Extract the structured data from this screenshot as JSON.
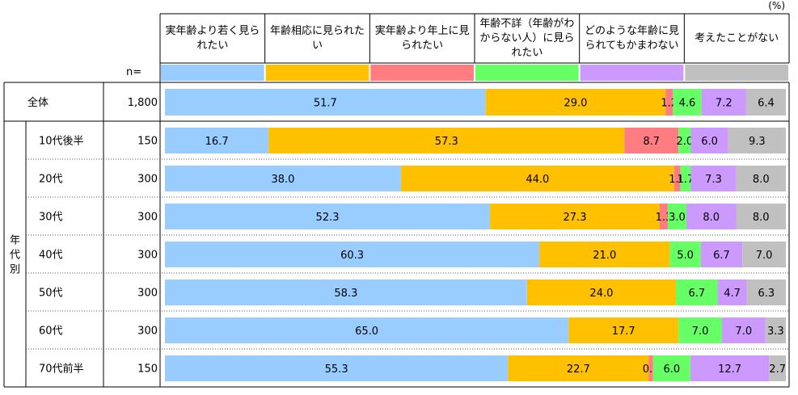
{
  "chart_data": {
    "type": "bar",
    "orientation": "horizontal",
    "stacked": "percent",
    "unit_label": "(%)",
    "n_header": "n=",
    "legend": [
      {
        "name": "実年齢より若く見られたい",
        "color": "#99ccff"
      },
      {
        "name": "年齢相応に見られたい",
        "color": "#ffc000"
      },
      {
        "name": "実年齢より年上に見られたい",
        "color": "#ff7c80"
      },
      {
        "name": "年齢不詳（年齢がわからない人）に見られたい",
        "color": "#66ff66"
      },
      {
        "name": "どのような年齢に見られてもかまわない",
        "color": "#cc99ff"
      },
      {
        "name": "考えたことがない",
        "color": "#c0c0c0"
      }
    ],
    "group_label": "年代別",
    "rows": [
      {
        "label": "全体",
        "n": "1,800",
        "values": [
          51.7,
          29.0,
          1.2,
          4.6,
          7.2,
          6.4
        ]
      },
      {
        "label": "10代後半",
        "n": "150",
        "values": [
          16.7,
          57.3,
          8.7,
          2.0,
          6.0,
          9.3
        ]
      },
      {
        "label": "20代",
        "n": "300",
        "values": [
          38.0,
          44.0,
          1.0,
          1.7,
          7.3,
          8.0
        ]
      },
      {
        "label": "30代",
        "n": "300",
        "values": [
          52.3,
          27.3,
          1.3,
          3.0,
          8.0,
          8.0
        ]
      },
      {
        "label": "40代",
        "n": "300",
        "values": [
          60.3,
          21.0,
          0.0,
          5.0,
          6.7,
          7.0
        ]
      },
      {
        "label": "50代",
        "n": "300",
        "values": [
          58.3,
          24.0,
          0.0,
          6.7,
          4.7,
          6.3
        ]
      },
      {
        "label": "60代",
        "n": "300",
        "values": [
          65.0,
          17.7,
          0.0,
          7.0,
          7.0,
          3.3
        ]
      },
      {
        "label": "70代前半",
        "n": "150",
        "values": [
          55.3,
          22.7,
          0.7,
          6.0,
          12.7,
          2.7
        ]
      }
    ],
    "xlim": [
      0,
      100
    ]
  }
}
